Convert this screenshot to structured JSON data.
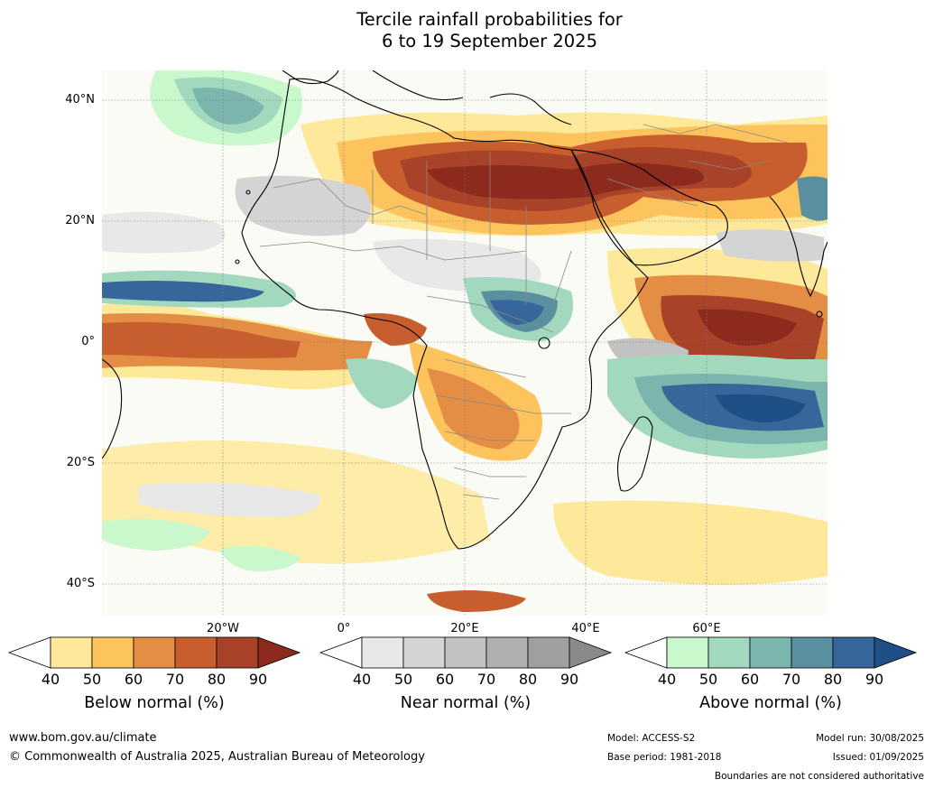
{
  "title": {
    "line1": "Tercile rainfall probabilities for",
    "line2": "6 to 19 September 2025"
  },
  "map": {
    "lat_labels": [
      "40°N",
      "20°N",
      "0°",
      "20°S",
      "40°S"
    ],
    "lon_labels": [
      "20°W",
      "0°",
      "20°E",
      "40°E",
      "60°E"
    ],
    "extent": {
      "lon_min": -40,
      "lon_max": 80,
      "lat_min": -45,
      "lat_max": 45
    },
    "region_focus": "Africa, Middle East and Indian Ocean"
  },
  "colorbars": [
    {
      "name": "below-normal",
      "title": "Below normal (%)",
      "ticks": [
        "40",
        "50",
        "60",
        "70",
        "80",
        "90"
      ],
      "colors": [
        "#ffffff",
        "#fee99b",
        "#fdc45e",
        "#e48e45",
        "#c85d2d",
        "#a8432a",
        "#8c2a1e"
      ]
    },
    {
      "name": "near-normal",
      "title": "Near normal (%)",
      "ticks": [
        "40",
        "50",
        "60",
        "70",
        "80",
        "90"
      ],
      "colors": [
        "#ffffff",
        "#e8e8e8",
        "#d4d4d4",
        "#c2c2c2",
        "#b0b0b0",
        "#a0a0a0",
        "#8a8a8a"
      ]
    },
    {
      "name": "above-normal",
      "title": "Above normal (%)",
      "ticks": [
        "40",
        "50",
        "60",
        "70",
        "80",
        "90"
      ],
      "colors": [
        "#ffffff",
        "#c9f8cc",
        "#a1d8be",
        "#7cb5ad",
        "#5a8fa0",
        "#36669a",
        "#1e4f86"
      ]
    }
  ],
  "footer": {
    "url": "www.bom.gov.au/climate",
    "copyright": "© Commonwealth of Australia 2025, Australian Bureau of Meteorology",
    "model": "Model: ACCESS-S2",
    "base_period": "Base period: 1981-2018",
    "model_run": "Model run: 30/08/2025",
    "issued": "Issued: 01/09/2025",
    "disclaimer": "Boundaries are not considered authoritative"
  }
}
